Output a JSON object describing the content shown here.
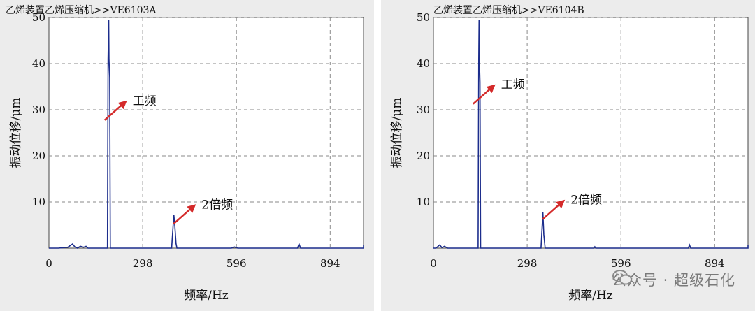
{
  "chart_data": [
    {
      "type": "line",
      "title": "乙烯装置乙烯压缩机>>VE6103A",
      "xlabel": "频率/Hz",
      "ylabel": "振动位移/μm",
      "xlim": [
        0,
        1000
      ],
      "ylim": [
        0,
        50
      ],
      "xticks": [
        0,
        298,
        596,
        894
      ],
      "yticks": [
        10,
        20,
        30,
        40,
        50
      ],
      "grid": true,
      "series": [
        {
          "color": "#1c2d8c",
          "x": [
            0,
            30,
            60,
            75,
            82,
            90,
            100,
            110,
            118,
            124,
            186,
            188,
            190,
            191,
            193,
            195,
            205,
            280,
            390,
            393,
            397,
            400,
            404,
            407,
            410,
            580,
            590,
            600,
            610,
            790,
            795,
            800,
            805,
            1000,
            1005,
            1010
          ],
          "y": [
            0,
            0,
            0.2,
            0.9,
            0.3,
            0,
            0.4,
            0.2,
            0.4,
            0,
            0,
            41,
            49.5,
            41,
            37,
            0,
            0,
            0,
            0,
            3,
            7.2,
            5,
            1,
            0,
            0,
            0,
            0.25,
            0,
            0,
            0,
            0.9,
            0,
            0,
            0,
            0.6,
            0
          ]
        }
      ],
      "annotations": [
        {
          "text": "工频",
          "x": 266,
          "y": 32
        },
        {
          "text": "2倍频",
          "x": 485,
          "y": 9.5
        }
      ]
    },
    {
      "type": "line",
      "title": "乙烯装置乙烯压缩机>>VE6104B",
      "xlabel": "频率/Hz",
      "ylabel": "振动位移/μm",
      "xlim": [
        0,
        1000
      ],
      "ylim": [
        0,
        50
      ],
      "xticks": [
        0,
        298,
        596,
        894
      ],
      "yticks": [
        10,
        20,
        30,
        40,
        50
      ],
      "grid": true,
      "series": [
        {
          "color": "#1c2d8c",
          "x": [
            0,
            8,
            20,
            27,
            35,
            45,
            52,
            60,
            142,
            144,
            145,
            146,
            148,
            150,
            160,
            250,
            342,
            345,
            348,
            351,
            355,
            400,
            510,
            513,
            516,
            520,
            810,
            814,
            818,
            822,
            1000,
            1005,
            1010
          ],
          "y": [
            0,
            0,
            0.7,
            0.1,
            0.4,
            0,
            0,
            0,
            0,
            41,
            49.5,
            41,
            36,
            0,
            0,
            0,
            0,
            4,
            7.8,
            3,
            0,
            0,
            0,
            0.3,
            0,
            0,
            0,
            0.7,
            0,
            0,
            0,
            0.6,
            0
          ]
        }
      ],
      "annotations": [
        {
          "text": "工频",
          "x": 215,
          "y": 35.5
        },
        {
          "text": "2倍频",
          "x": 436,
          "y": 10.5
        }
      ]
    }
  ],
  "watermark": "公众号 · 超级石化"
}
